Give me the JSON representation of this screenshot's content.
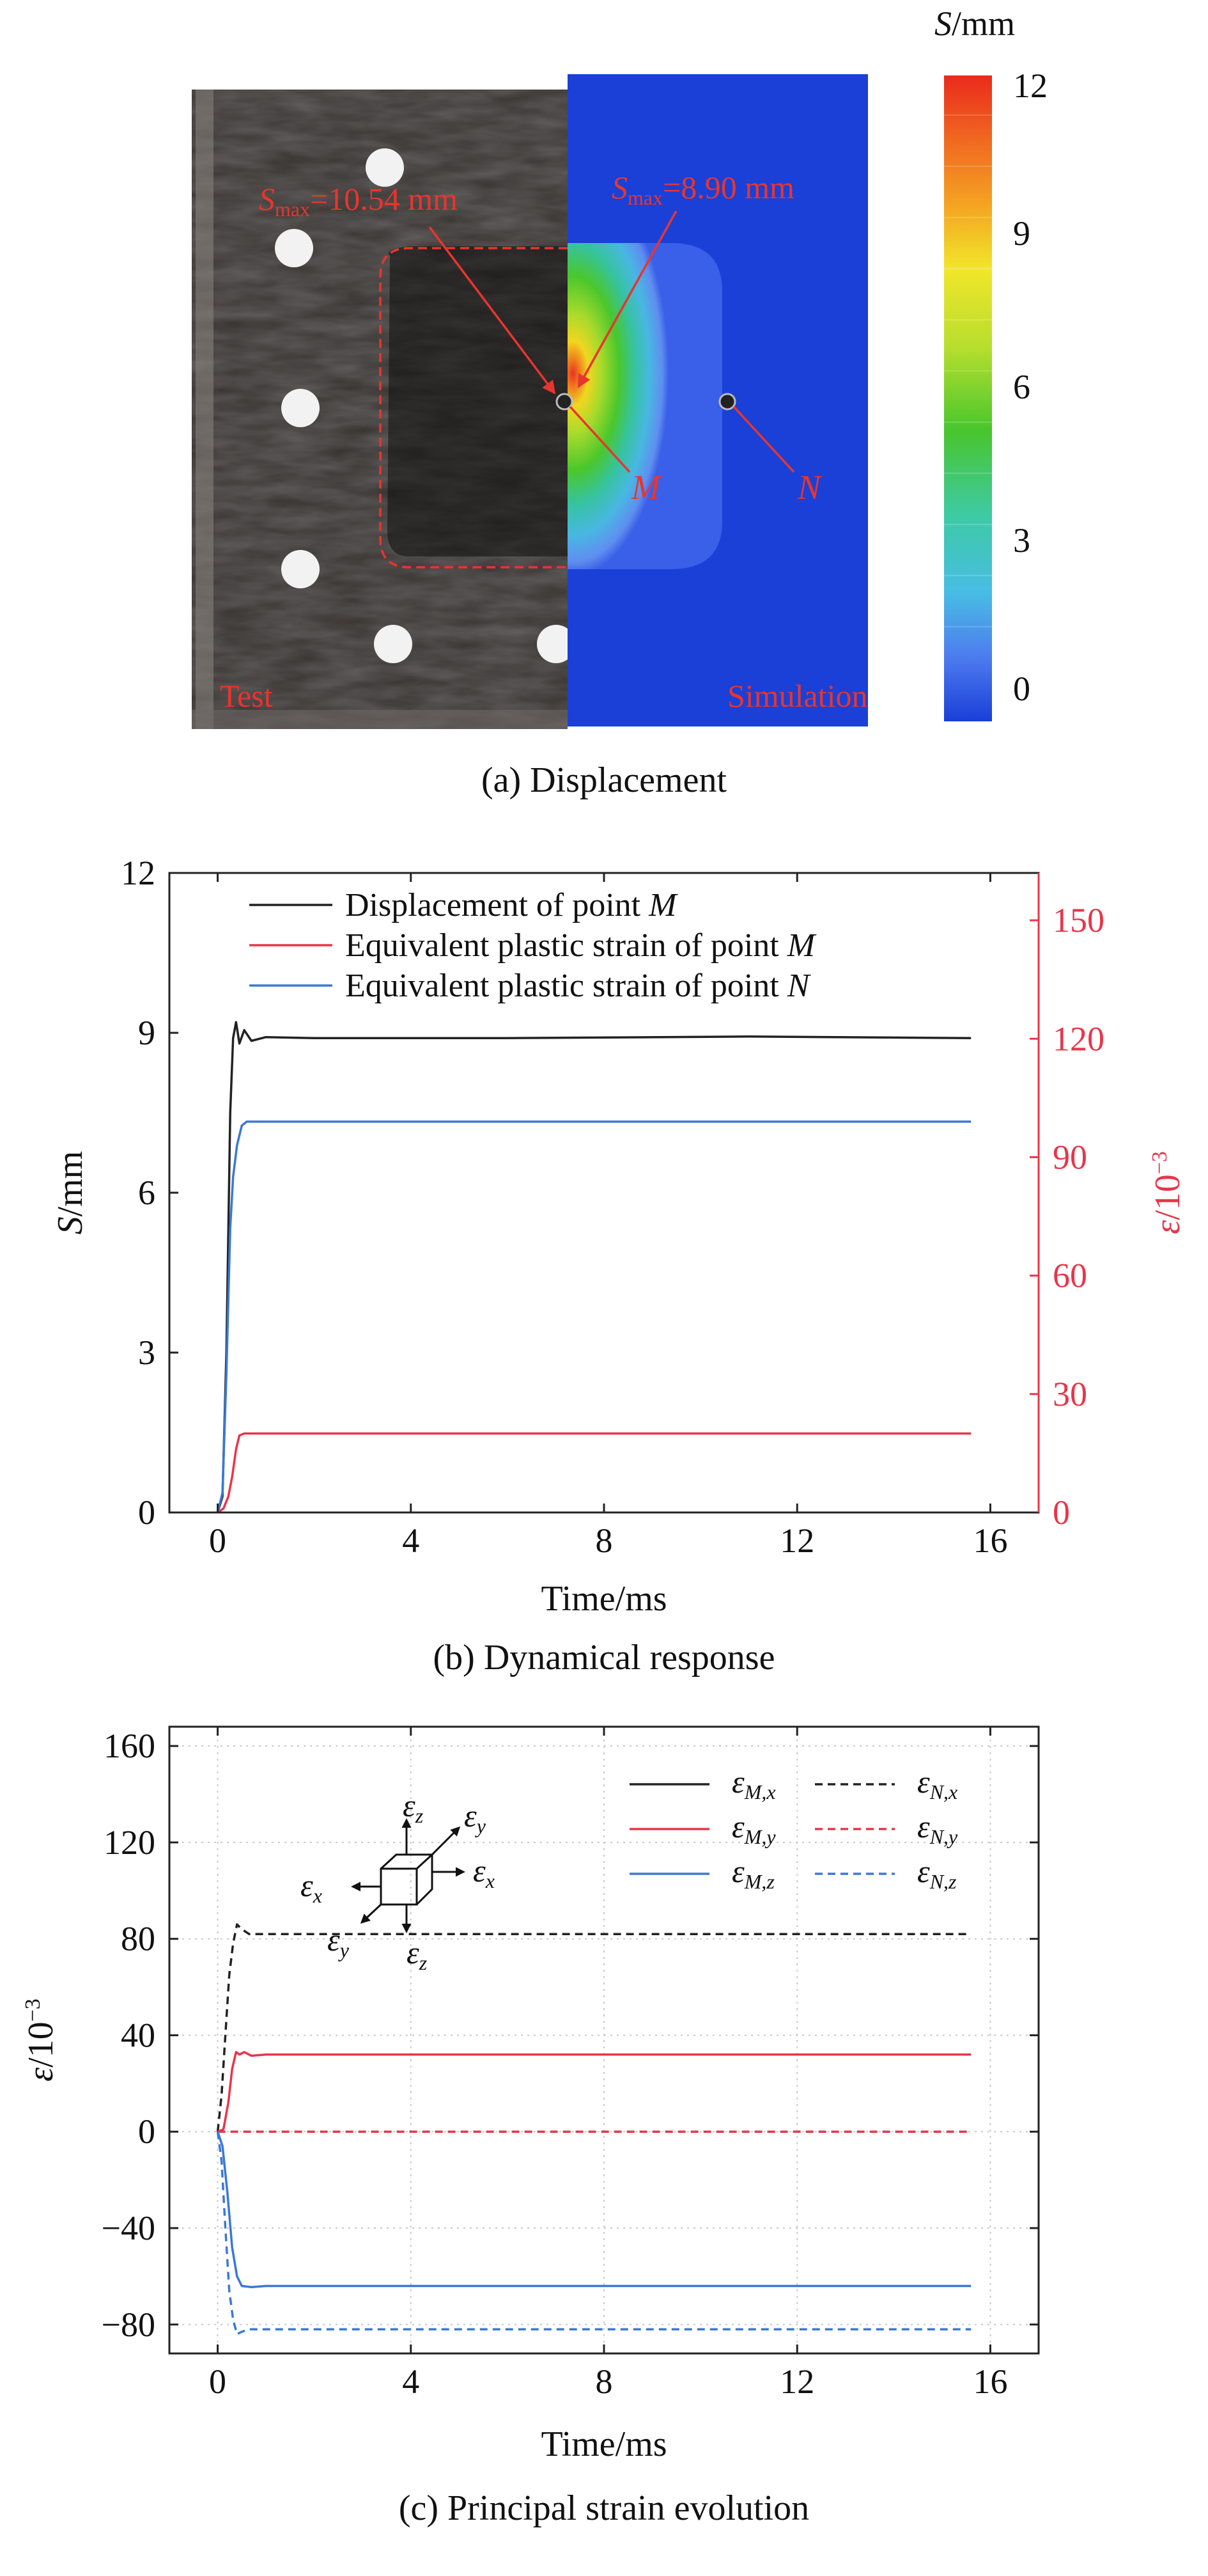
{
  "panel_a": {
    "caption": "(a) Displacement",
    "test_label": "Test",
    "simulation_label": "Simulation",
    "smax_test_prefix": "S",
    "smax_test_sub": "max",
    "smax_test_value": "=10.54 mm",
    "smax_sim_prefix": "S",
    "smax_sim_sub": "max",
    "smax_sim_value": "=8.90 mm",
    "point_m": "M",
    "point_n": "N",
    "colorbar": {
      "title_var": "S",
      "title_unit": "/mm",
      "ticks": [
        "12",
        "9",
        "6",
        "3",
        "0"
      ]
    },
    "colors": {
      "label_red": "#e8352e",
      "plate_blue": "#1a40d8"
    }
  },
  "panel_b": {
    "caption": "(b) Dynamical response",
    "xlabel": "Time/ms",
    "ylabel_var": "S",
    "ylabel_unit": "/mm",
    "y2label_var": "ε",
    "y2label_unit": "/10",
    "y2label_exp": "−3",
    "legend": [
      {
        "text": "Displacement of point ",
        "point": "M",
        "color": "#222222"
      },
      {
        "text": "Equivalent plastic strain of point ",
        "point": "M",
        "color": "#e8354a"
      },
      {
        "text": "Equivalent plastic strain of point ",
        "point": "N",
        "color": "#3b78d6"
      }
    ]
  },
  "panel_c": {
    "caption": "(c) Principal strain evolution",
    "xlabel": "Time/ms",
    "ylabel_var": "ε",
    "ylabel_unit": "/10",
    "ylabel_exp": "−3",
    "legend": [
      {
        "sym": "ε",
        "sub": "M,x",
        "color": "#222222",
        "dash": false
      },
      {
        "sym": "ε",
        "sub": "N,x",
        "color": "#222222",
        "dash": true
      },
      {
        "sym": "ε",
        "sub": "M,y",
        "color": "#e8354a",
        "dash": false
      },
      {
        "sym": "ε",
        "sub": "N,y",
        "color": "#e8354a",
        "dash": true
      },
      {
        "sym": "ε",
        "sub": "M,z",
        "color": "#3b78d6",
        "dash": false
      },
      {
        "sym": "ε",
        "sub": "N,z",
        "color": "#3b78d6",
        "dash": true
      }
    ],
    "axes_icon": {
      "z": {
        "sym": "ε",
        "sub": "z"
      },
      "y": {
        "sym": "ε",
        "sub": "y"
      },
      "x": {
        "sym": "ε",
        "sub": "x"
      }
    }
  },
  "chart_data": [
    {
      "type": "line",
      "x_ticks": [
        0,
        4,
        8,
        12,
        16
      ],
      "y_ticks": [
        0,
        3,
        6,
        9,
        12
      ],
      "y2_ticks": [
        0,
        30,
        60,
        90,
        120,
        150
      ],
      "xlim": [
        -1,
        17
      ],
      "ylim": [
        0,
        12
      ],
      "y2lim": [
        0,
        162
      ],
      "grid": false,
      "legend_position": "top-left",
      "series": [
        {
          "name": "Displacement of point M",
          "axis": "left",
          "color": "#222222",
          "x": [
            0,
            0.1,
            0.18,
            0.26,
            0.32,
            0.38,
            0.45,
            0.55,
            0.7,
            1.0,
            2.0,
            6.0,
            11.0,
            15.6
          ],
          "y": [
            0,
            0.3,
            3.0,
            7.5,
            8.9,
            9.2,
            8.8,
            9.05,
            8.85,
            8.92,
            8.9,
            8.9,
            8.93,
            8.9
          ]
        },
        {
          "name": "Equivalent plastic strain of point M",
          "axis": "right",
          "color": "#e8354a",
          "x": [
            0,
            0.12,
            0.22,
            0.3,
            0.38,
            0.45,
            0.55,
            1.0,
            15.6
          ],
          "y": [
            0,
            1,
            4,
            9,
            16,
            19.5,
            20,
            20,
            20
          ]
        },
        {
          "name": "Equivalent plastic strain of point N",
          "axis": "right",
          "color": "#3b78d6",
          "x": [
            0,
            0.1,
            0.18,
            0.26,
            0.32,
            0.4,
            0.5,
            0.6,
            1.0,
            15.6
          ],
          "y": [
            0,
            5,
            35,
            72,
            85,
            93,
            98,
            99,
            99,
            99
          ]
        }
      ]
    },
    {
      "type": "line",
      "x_ticks": [
        0,
        4,
        8,
        12,
        16
      ],
      "y_ticks": [
        -80,
        -40,
        0,
        40,
        80,
        120,
        160
      ],
      "xlim": [
        -1,
        17
      ],
      "ylim": [
        -92,
        168
      ],
      "grid": true,
      "legend_position": "top-right",
      "series": [
        {
          "name": "εM,x",
          "color": "#222222",
          "dash": false,
          "x": [
            0,
            0.12
          ],
          "y": [
            0,
            0
          ]
        },
        {
          "name": "εN,x",
          "color": "#222222",
          "dash": true,
          "x": [
            0,
            0.08,
            0.16,
            0.24,
            0.32,
            0.4,
            0.5,
            0.65,
            1.0,
            15.6
          ],
          "y": [
            0,
            15,
            40,
            65,
            78,
            86,
            84,
            82,
            82,
            82
          ]
        },
        {
          "name": "εM,y",
          "color": "#e8354a",
          "dash": false,
          "x": [
            0,
            0.12,
            0.22,
            0.3,
            0.38,
            0.45,
            0.55,
            0.7,
            1.0,
            15.6
          ],
          "y": [
            0,
            1,
            12,
            26,
            33,
            32,
            33,
            31.5,
            32,
            32
          ]
        },
        {
          "name": "εN,y",
          "color": "#e8354a",
          "dash": true,
          "x": [
            0,
            15.6
          ],
          "y": [
            0,
            0
          ]
        },
        {
          "name": "εM,z",
          "color": "#3b78d6",
          "dash": false,
          "x": [
            0,
            0.1,
            0.2,
            0.3,
            0.4,
            0.5,
            0.7,
            1.0,
            15.6
          ],
          "y": [
            0,
            -6,
            -25,
            -48,
            -60,
            -64,
            -64.5,
            -64,
            -64
          ]
        },
        {
          "name": "εN,z",
          "color": "#3b78d6",
          "dash": true,
          "x": [
            0,
            0.08,
            0.16,
            0.24,
            0.32,
            0.4,
            0.5,
            0.65,
            1.0,
            15.6
          ],
          "y": [
            0,
            -12,
            -40,
            -66,
            -78,
            -84,
            -83,
            -82,
            -82,
            -82
          ]
        }
      ]
    }
  ]
}
